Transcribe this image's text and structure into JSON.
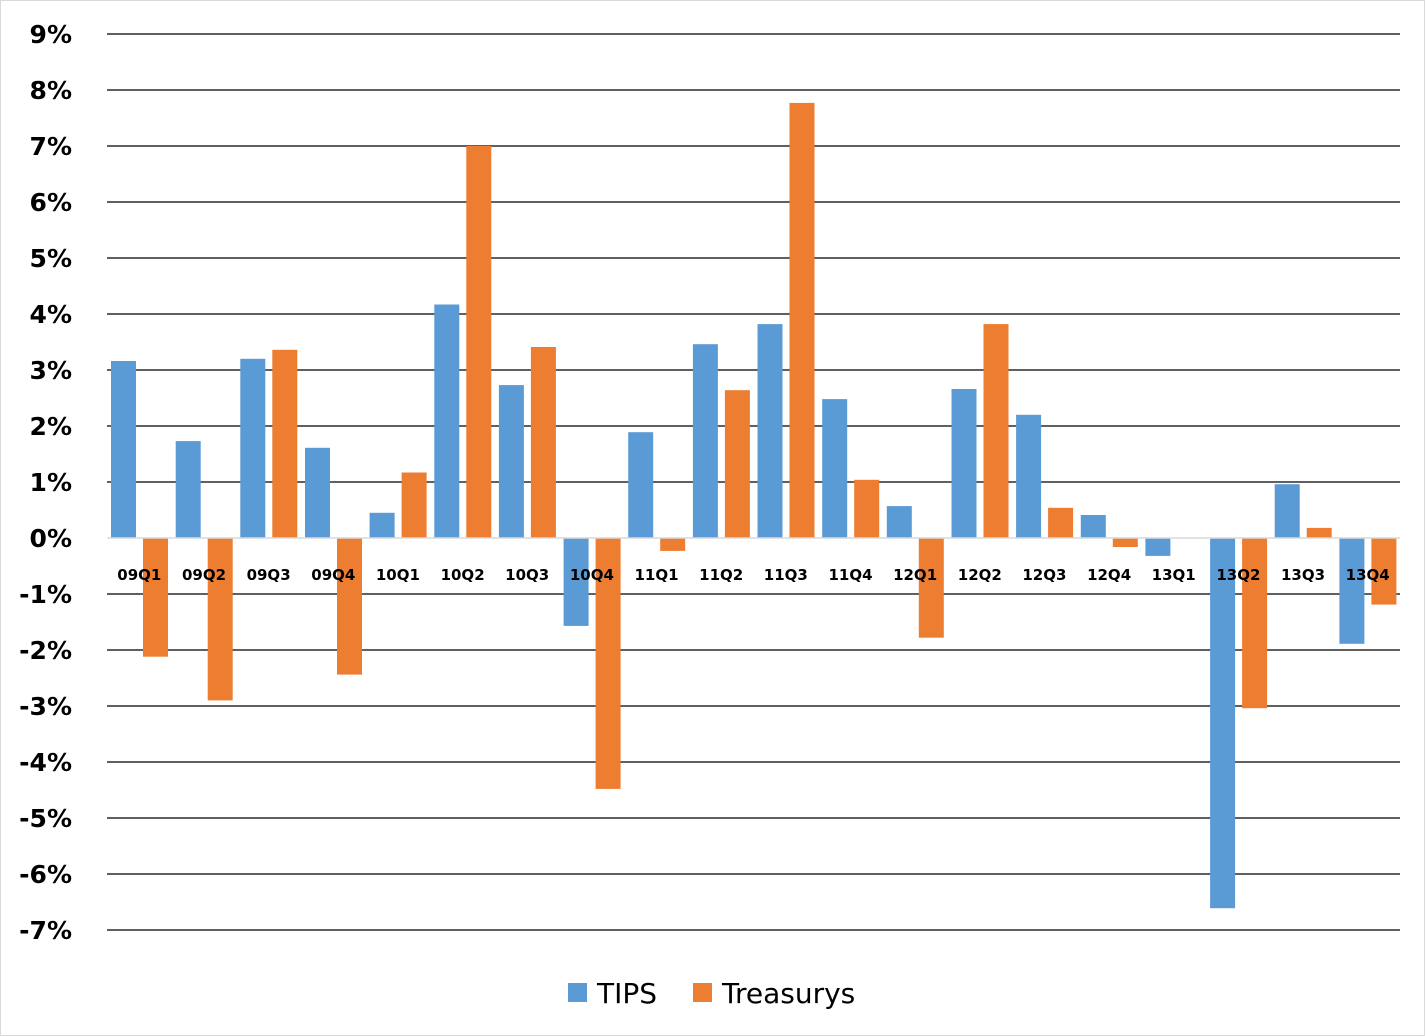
{
  "chart_data": {
    "type": "bar",
    "title": "",
    "xlabel": "",
    "ylabel": "",
    "ylim": [
      -7,
      9
    ],
    "y_tick_step": 1,
    "y_tick_format": "{v}%",
    "grid": true,
    "legend_position": "bottom",
    "categories": [
      "09Q1",
      "09Q2",
      "09Q3",
      "09Q4",
      "10Q1",
      "10Q2",
      "10Q3",
      "10Q4",
      "11Q1",
      "11Q2",
      "11Q3",
      "11Q4",
      "12Q1",
      "12Q2",
      "12Q3",
      "12Q4",
      "13Q1",
      "13Q2",
      "13Q3",
      "13Q4"
    ],
    "series": [
      {
        "name": "TIPS",
        "color": "#5b9bd5",
        "values": [
          3.16,
          1.73,
          3.2,
          1.61,
          0.45,
          4.17,
          2.73,
          -1.57,
          1.89,
          3.46,
          3.82,
          2.48,
          0.57,
          2.66,
          2.2,
          0.41,
          -0.32,
          -6.61,
          0.96,
          -1.89
        ]
      },
      {
        "name": "Treasurys",
        "color": "#ed7d31",
        "values": [
          -2.12,
          -2.9,
          3.36,
          -2.44,
          1.17,
          7.0,
          3.41,
          -4.48,
          -0.23,
          2.64,
          7.77,
          1.04,
          -1.78,
          3.82,
          0.54,
          -0.16,
          0.0,
          -3.04,
          0.18,
          -1.19
        ]
      }
    ]
  },
  "legend": {
    "items": [
      {
        "label": "TIPS",
        "color": "#5b9bd5"
      },
      {
        "label": "Treasurys",
        "color": "#ed7d31"
      }
    ]
  }
}
